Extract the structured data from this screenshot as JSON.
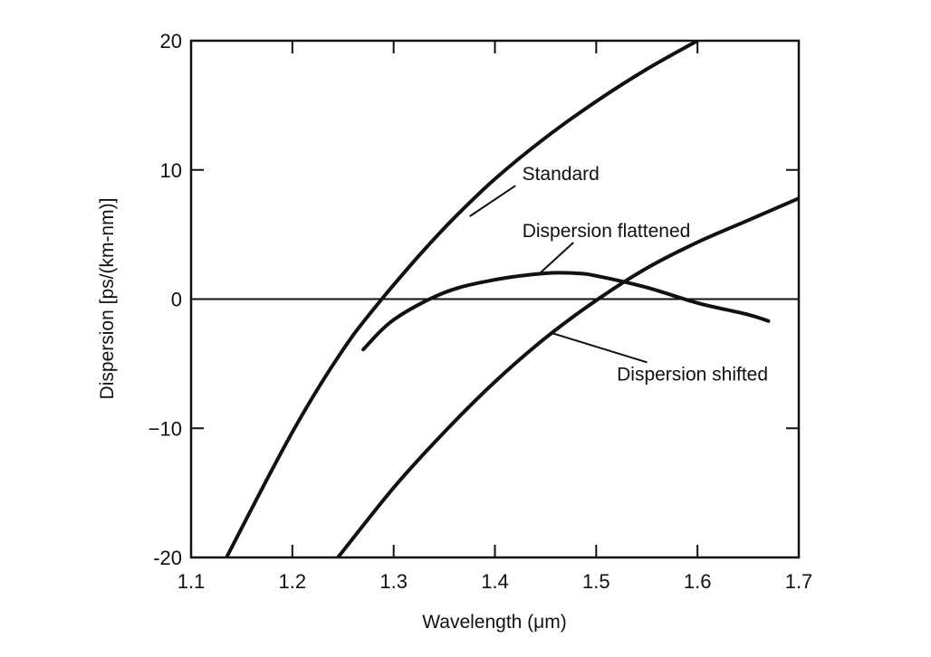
{
  "chart_data": {
    "type": "line",
    "title": "",
    "xlabel": "Wavelength (μm)",
    "ylabel": "Dispersion [ps/(km-nm)]",
    "xlim": [
      1.1,
      1.7
    ],
    "ylim": [
      -20,
      20
    ],
    "x_ticks": [
      1.1,
      1.2,
      1.3,
      1.4,
      1.5,
      1.6,
      1.7
    ],
    "x_tick_labels": [
      "1.1",
      "1.2",
      "1.3",
      "1.4",
      "1.5",
      "1.6",
      "1.7"
    ],
    "y_ticks": [
      -20,
      -10,
      0,
      10,
      20
    ],
    "y_tick_labels": [
      "-20",
      "−10",
      "0",
      "10",
      "20"
    ],
    "grid": false,
    "zero_line": true,
    "series": [
      {
        "name": "Standard",
        "x": [
          1.135,
          1.16,
          1.18,
          1.2,
          1.22,
          1.24,
          1.26,
          1.28,
          1.3,
          1.33,
          1.36,
          1.4,
          1.45,
          1.5,
          1.55,
          1.6,
          1.63
        ],
        "y": [
          -20,
          -16.2,
          -13.2,
          -10.3,
          -7.6,
          -5.1,
          -2.8,
          -0.8,
          1.1,
          3.8,
          6.3,
          9.3,
          12.5,
          15.3,
          17.8,
          20.0,
          21.3
        ]
      },
      {
        "name": "Dispersion flattened",
        "x": [
          1.27,
          1.3,
          1.35,
          1.4,
          1.45,
          1.48,
          1.5,
          1.55,
          1.6,
          1.65,
          1.67
        ],
        "y": [
          -3.9,
          -1.6,
          0.5,
          1.5,
          2.0,
          2.0,
          1.8,
          0.9,
          -0.3,
          -1.2,
          -1.7
        ]
      },
      {
        "name": "Dispersion shifted",
        "x": [
          1.245,
          1.3,
          1.35,
          1.4,
          1.45,
          1.5,
          1.55,
          1.6,
          1.65,
          1.7
        ],
        "y": [
          -20,
          -14.6,
          -10.3,
          -6.4,
          -3.0,
          -0.1,
          2.4,
          4.4,
          6.1,
          7.8
        ]
      }
    ],
    "annotations": [
      {
        "text": "Standard",
        "x": 1.465,
        "y": 9.2,
        "pointer_to": [
          1.375,
          6.4
        ]
      },
      {
        "text": "Dispersion flattened",
        "x": 1.51,
        "y": 4.8,
        "pointer_to": [
          1.445,
          2.05
        ]
      },
      {
        "text": "Dispersion shifted",
        "x": 1.595,
        "y": -6.3,
        "pointer_to": [
          1.455,
          -2.6
        ]
      }
    ]
  }
}
